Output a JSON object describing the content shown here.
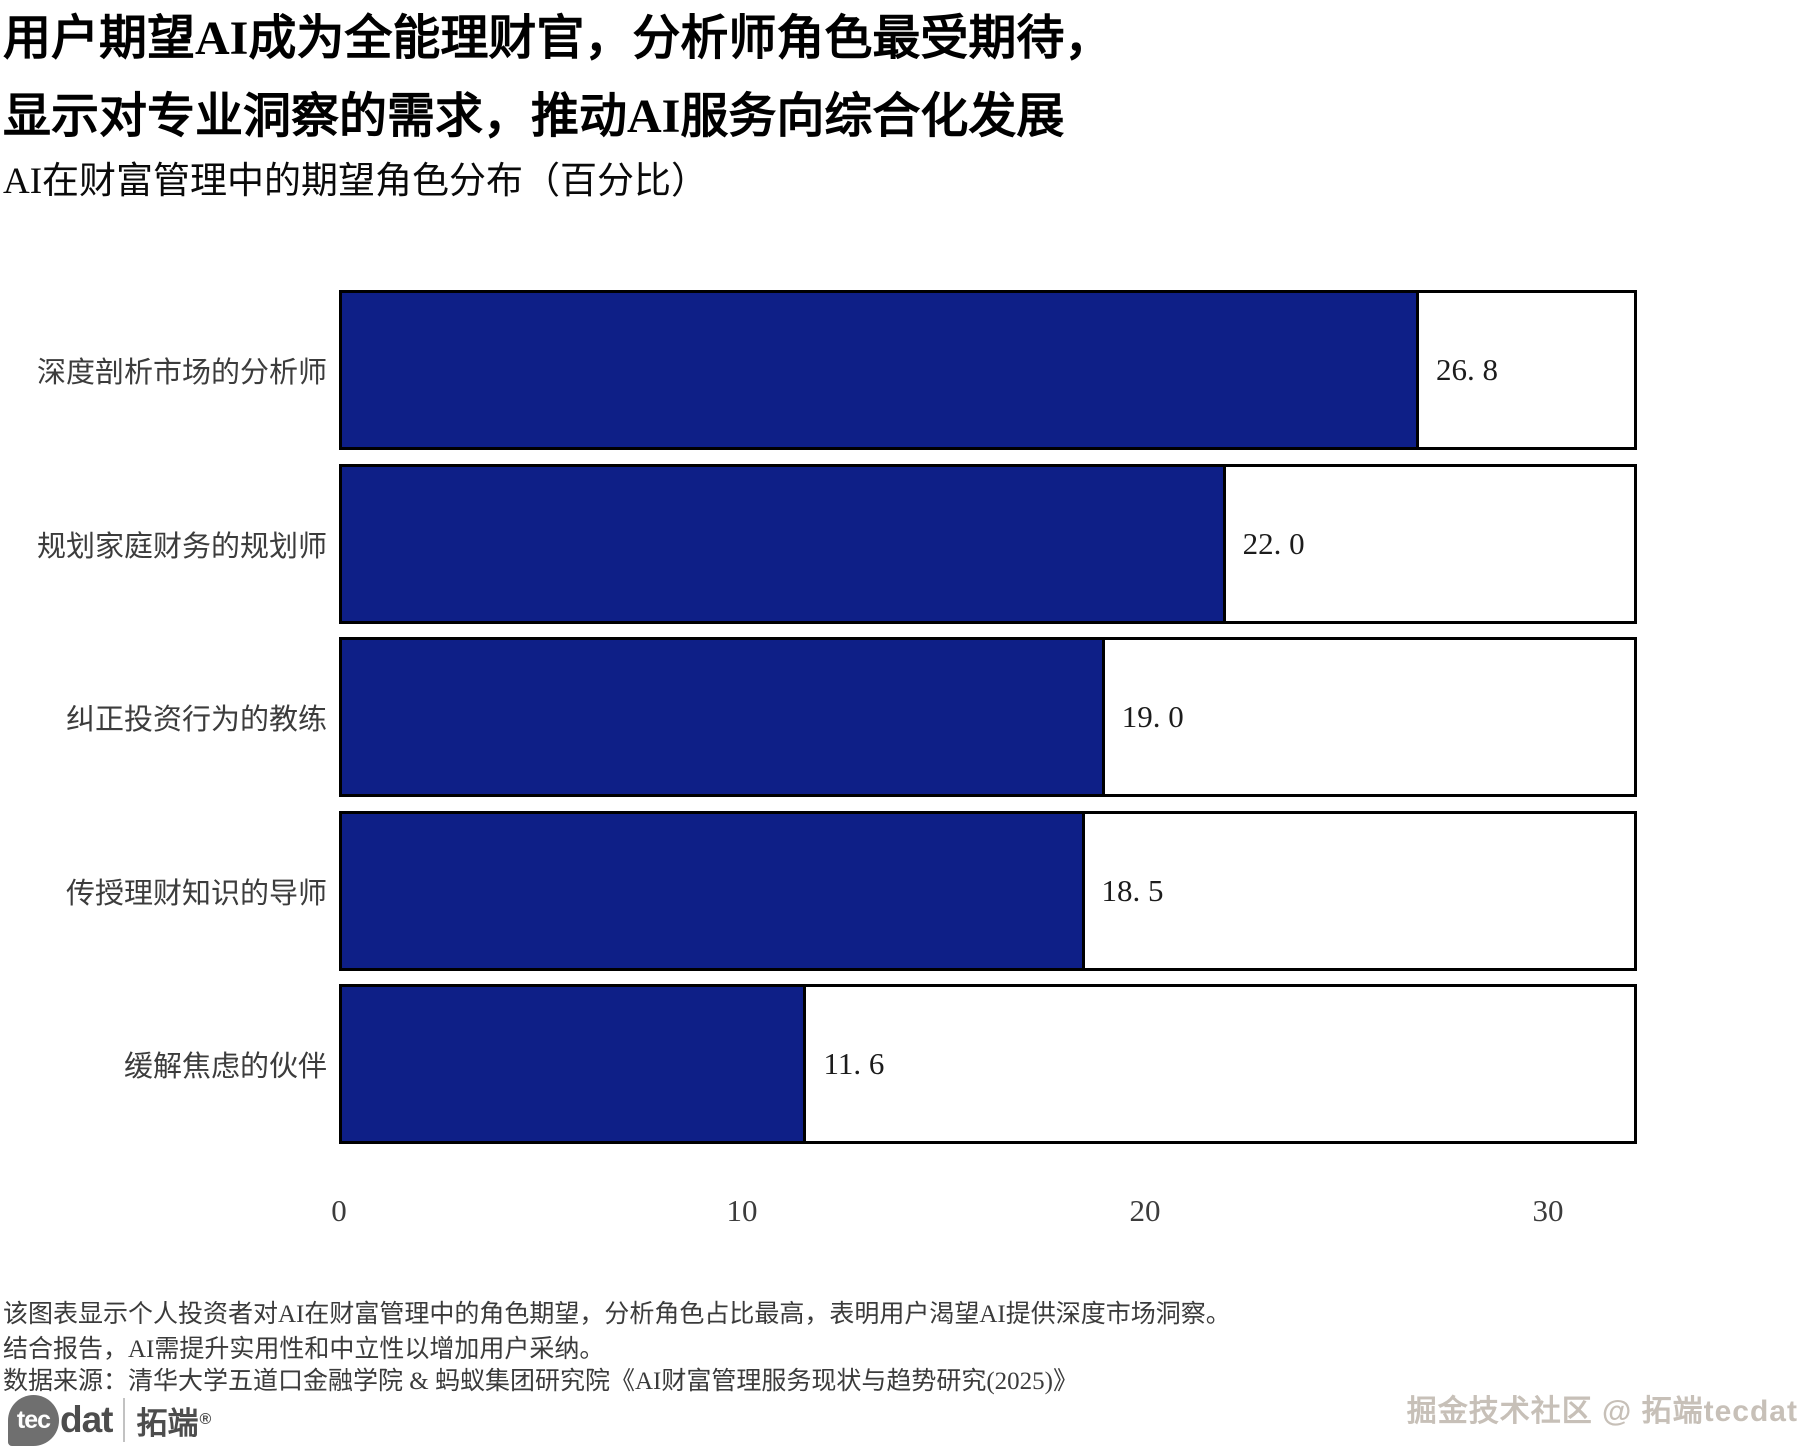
{
  "header": {
    "title_line1": "用户期望AI成为全能理财官，分析师角色最受期待，",
    "title_line2": "显示对专业洞察的需求，推动AI服务向综合化发展",
    "subtitle": "AI在财富管理中的期望角色分布（百分比）"
  },
  "chart_data": {
    "type": "bar",
    "orientation": "horizontal",
    "title": "AI在财富管理中的期望角色分布（百分比）",
    "categories": [
      "深度剖析市场的分析师",
      "规划家庭财务的规划师",
      "纠正投资行为的教练",
      "传授理财知识的导师",
      "缓解焦虑的伙伴"
    ],
    "values": [
      26.8,
      22.0,
      19.0,
      18.5,
      11.6
    ],
    "value_labels": [
      "26. 8",
      "22. 0",
      "19. 0",
      "18. 5",
      "11. 6"
    ],
    "xlabel": "",
    "ylabel": "",
    "xticks": [
      0,
      10,
      20,
      30
    ],
    "xlim": [
      0,
      32.2
    ],
    "grid": false,
    "legend": null,
    "colors": {
      "bar": "#0e1f87",
      "track": "#ffffff",
      "border": "#000000"
    }
  },
  "footer": {
    "note_line1": "该图表显示个人投资者对AI在财富管理中的角色期望，分析角色占比最高，表明用户渴望AI提供深度市场洞察。",
    "note_line2": "结合报告，AI需提升实用性和中立性以增加用户采纳。",
    "source": "数据来源：清华大学五道口金融学院 & 蚂蚁集团研究院《AI财富管理服务现状与趋势研究(2025)》"
  },
  "branding": {
    "logo_tec": "tec",
    "logo_dat": "dat",
    "logo_cn": "拓端",
    "logo_reg": "®",
    "watermark": "掘金技术社区 @ 拓端tecdat"
  }
}
